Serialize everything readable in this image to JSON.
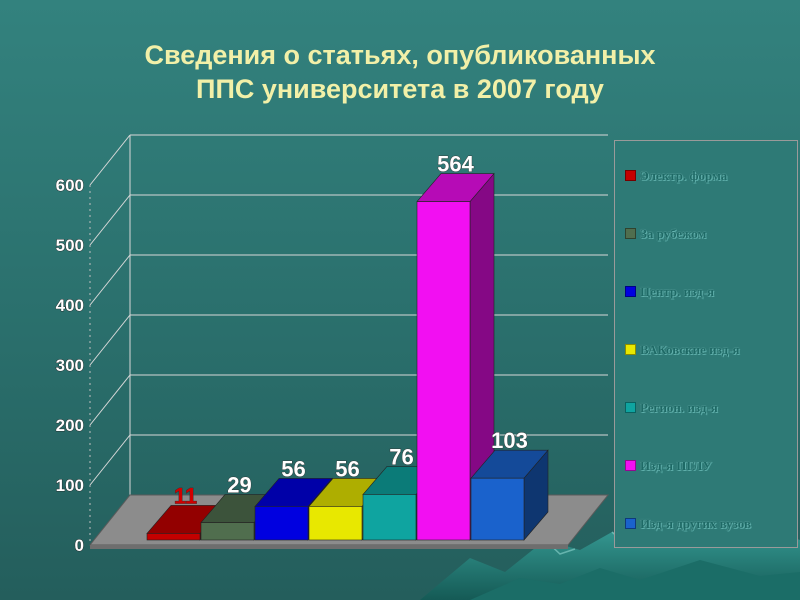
{
  "title": {
    "line1": "Сведения о статьях, опубликованных",
    "line2": "ППС университета в 2007 году"
  },
  "chart_data": {
    "type": "bar",
    "style": "3d",
    "series": [
      {
        "name": "Электр. форма",
        "value": 11,
        "color": "#c40000"
      },
      {
        "name": "За рубежом",
        "value": 29,
        "color": "#506e4e"
      },
      {
        "name": "Центр. изд-я",
        "value": 56,
        "color": "#0000e0"
      },
      {
        "name": "ВАКовские изд-я",
        "value": 56,
        "color": "#e8e800"
      },
      {
        "name": "Регион. изд-я",
        "value": 76,
        "color": "#0fa4a0"
      },
      {
        "name": "Изд-я ПГЛУ",
        "value": 564,
        "color": "#f20ff2"
      },
      {
        "name": "Изд-я других вузов",
        "value": 103,
        "color": "#1a62cc"
      }
    ],
    "y_ticks": [
      "0",
      "100",
      "200",
      "300",
      "400",
      "500",
      "600"
    ],
    "ylim": [
      0,
      600
    ],
    "grid": true,
    "legend_position": "right"
  }
}
